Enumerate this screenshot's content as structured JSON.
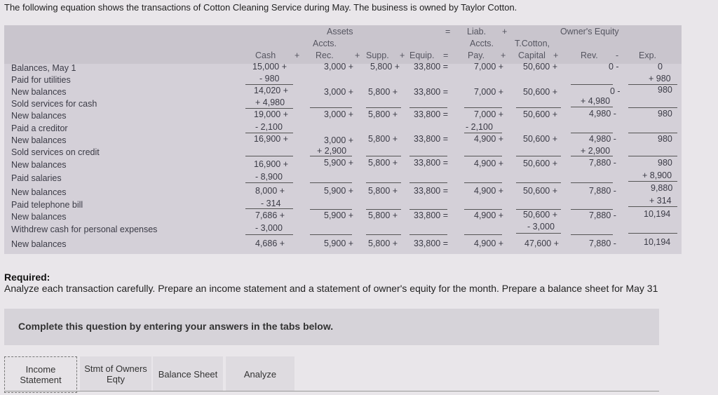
{
  "intro": "The following equation shows the transactions of Cotton Cleaning Service during May. The business is owned by Taylor Cotton.",
  "header": {
    "assets": "Assets",
    "eq": "=",
    "liab": "Liab.",
    "plus": "+",
    "owners_equity": "Owner's Equity",
    "accts_a": "Accts.",
    "rec": "Rec.",
    "accts_l": "Accts.",
    "pay": "Pay.",
    "tcotton": "T.Cotton,",
    "cash": "Cash",
    "supp": "Supp.",
    "equip": "Equip.",
    "capital": "Capital",
    "rev": "Rev.",
    "minus": "-",
    "exp": "Exp."
  },
  "rows": [
    "Balances, May 1",
    "Paid for utilities",
    "New balances",
    "Sold services for cash",
    "New balances",
    "Paid a creditor",
    "New balances",
    "Sold services on credit",
    "New balances",
    "Paid salaries",
    "New balances",
    "Paid telephone bill",
    "New balances",
    "Withdrew cash for personal expenses",
    "New balances"
  ],
  "cells": {
    "r0": {
      "cash": "15,000 +",
      "ar": "3,000 +",
      "supp": "5,800 +",
      "equip": "33,800 =",
      "ap": "7,000 +",
      "cap": "50,600 +",
      "rev": "0 -",
      "exp": "0"
    },
    "r1": {
      "cash": "- 980",
      "exp": "+ 980"
    },
    "r2": {
      "cash": "14,020 +",
      "ar": "3,000 +",
      "supp": "5,800 +",
      "equip": "33,800 =",
      "ap": "7,000 +",
      "cap": "50,600 +",
      "rev": "0 -",
      "exp": "980"
    },
    "r3": {
      "cash": "+ 4,980",
      "rev": "+ 4,980"
    },
    "r4": {
      "cash": "19,000 +",
      "ar": "3,000 +",
      "supp": "5,800 +",
      "equip": "33,800 =",
      "ap": "7,000 +",
      "cap": "50,600 +",
      "rev": "4,980 -",
      "exp": "980"
    },
    "r5": {
      "cash": "- 2,100",
      "ap": "- 2,100"
    },
    "r6": {
      "cash": "16,900 +",
      "ar": "3,000 +",
      "supp": "5,800 +",
      "equip": "33,800 =",
      "ap": "4,900 +",
      "cap": "50,600 +",
      "rev": "4,980 -",
      "exp": "980"
    },
    "r7": {
      "ar": "+ 2,900",
      "rev": "+ 2,900"
    },
    "r8": {
      "cash": "16,900 +",
      "ar": "5,900 +",
      "supp": "5,800 +",
      "equip": "33,800 =",
      "ap": "4,900 +",
      "cap": "50,600 +",
      "rev": "7,880 -",
      "exp": "980"
    },
    "r9": {
      "cash": "- 8,900",
      "exp": "+ 8,900"
    },
    "r10": {
      "cash": "8,000 +",
      "ar": "5,900 +",
      "supp": "5,800 +",
      "equip": "33,800 =",
      "ap": "4,900 +",
      "cap": "50,600 +",
      "rev": "7,880 -",
      "exp": "9,880"
    },
    "r11": {
      "cash": "- 314",
      "exp": "+ 314"
    },
    "r12": {
      "cash": "7,686 +",
      "ar": "5,900 +",
      "supp": "5,800 +",
      "equip": "33,800 =",
      "ap": "4,900 +",
      "cap": "50,600 +",
      "rev": "7,880 -",
      "exp": "10,194"
    },
    "r13": {
      "cash": "- 3,000",
      "cap": "- 3,000"
    },
    "r14": {
      "cash": "4,686 +",
      "ar": "5,900 +",
      "supp": "5,800 +",
      "equip": "33,800 =",
      "ap": "4,900 +",
      "cap": "47,600 +",
      "rev": "7,880 -",
      "exp": "10,194"
    }
  },
  "required": {
    "title": "Required:",
    "text": "Analyze each transaction carefully. Prepare an income statement and a statement of owner's equity for the month. Prepare a balance sheet for May 31"
  },
  "instruction": "Complete this question by entering your answers in the tabs below.",
  "tabs": [
    {
      "label": "Income Statement"
    },
    {
      "label": "Stmt of Owners Eqty"
    },
    {
      "label": "Balance Sheet"
    },
    {
      "label": "Analyze"
    }
  ]
}
